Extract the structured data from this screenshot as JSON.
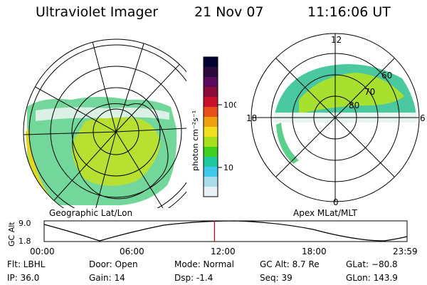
{
  "header": {
    "instrument": "Ultraviolet Imager",
    "date": "21 Nov 07",
    "time": "11:16:06 UT"
  },
  "left_panel": {
    "caption": "Geographic Lat/Lon"
  },
  "right_panel": {
    "caption": "Apex MLat/MLT",
    "mlt_labels": {
      "top": "12",
      "right": "6",
      "bottom": "0",
      "left": "18"
    },
    "lat_labels": [
      "60",
      "70",
      "80"
    ]
  },
  "colorbar": {
    "unit_label": "photon cm⁻²s⁻¹",
    "ticks": [
      "100",
      "10"
    ],
    "colors": [
      "#000033",
      "#2a0a3a",
      "#5a0a5a",
      "#8a0a3a",
      "#c8102a",
      "#e8501a",
      "#f0a010",
      "#f0e020",
      "#a8e020",
      "#40d020",
      "#20c8a0",
      "#40c8e8",
      "#a8dce8",
      "#e8f0f4"
    ]
  },
  "altitude_plot": {
    "ylabel": "GC Alt",
    "y_ticks": [
      "9.0",
      "1.8"
    ],
    "x_ticks": [
      "00:00",
      "06:00",
      "12:00",
      "18:00",
      "23:59"
    ],
    "current_fraction": 0.4695
  },
  "info": {
    "filter": "Flt: LBHL",
    "ip": "IP: 36.0",
    "door": "Door: Open",
    "gain": "Gain: 14",
    "mode": "Mode: Normal",
    "dsp": "Dsp:    -1.4",
    "gc_alt": "GC Alt: 8.7 Re",
    "seq": "Seq: 39",
    "glat": "GLat: −80.8",
    "glon": "GLon: 143.9"
  }
}
